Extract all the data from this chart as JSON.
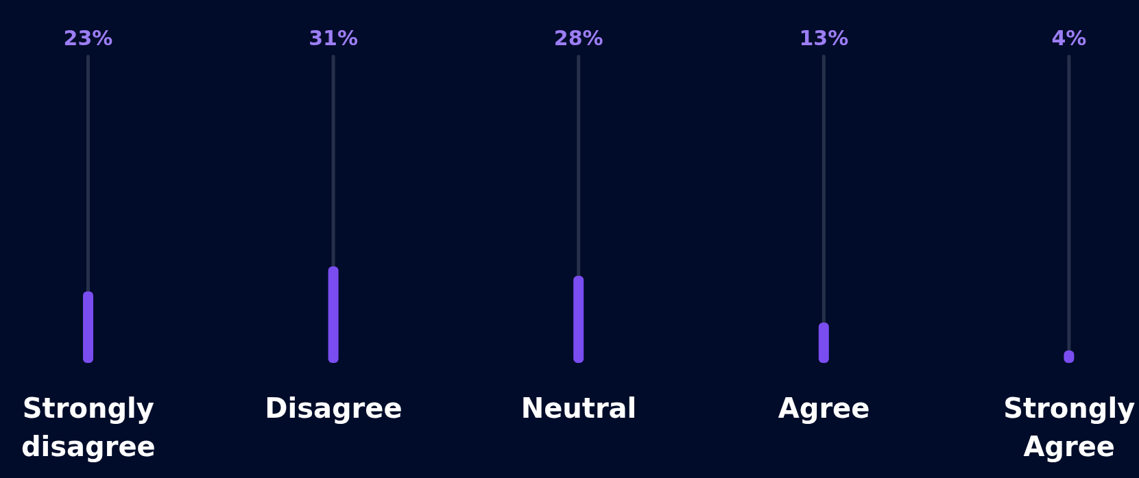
{
  "chart_data": {
    "type": "bar",
    "categories": [
      "Strongly disagree",
      "Disagree",
      "Neutral",
      "Agree",
      "Strongly Agree"
    ],
    "values": [
      23,
      31,
      28,
      13,
      4
    ],
    "value_labels": [
      "23%",
      "31%",
      "28%",
      "13%",
      "4%"
    ],
    "color": "#7a4df0",
    "grid": "x"
  }
}
